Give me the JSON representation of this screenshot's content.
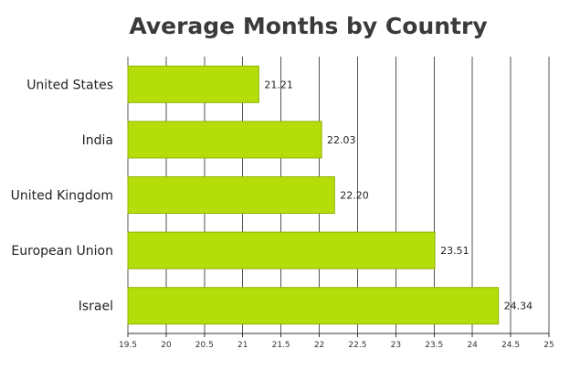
{
  "chart_data": {
    "type": "bar",
    "orientation": "horizontal",
    "title": "Average Months by Country",
    "xlabel": "",
    "ylabel": "",
    "categories": [
      "United States",
      "India",
      "United Kingdom",
      "European Union",
      "Israel"
    ],
    "values": [
      21.21,
      22.03,
      22.2,
      23.51,
      24.34
    ],
    "value_labels": [
      "21.21",
      "22.03",
      "22.20",
      "23.51",
      "24.34"
    ],
    "xlim": [
      19.5,
      25
    ],
    "xticks": [
      "19.5",
      "20",
      "20.5",
      "21",
      "21.5",
      "22",
      "22.5",
      "23",
      "23.5",
      "24",
      "24.5",
      "25"
    ],
    "grid": "vertical",
    "legend": "none",
    "bar_color": "#b5dd0a",
    "bar_edge_color": "#8fb300",
    "grid_color": "#555555"
  }
}
